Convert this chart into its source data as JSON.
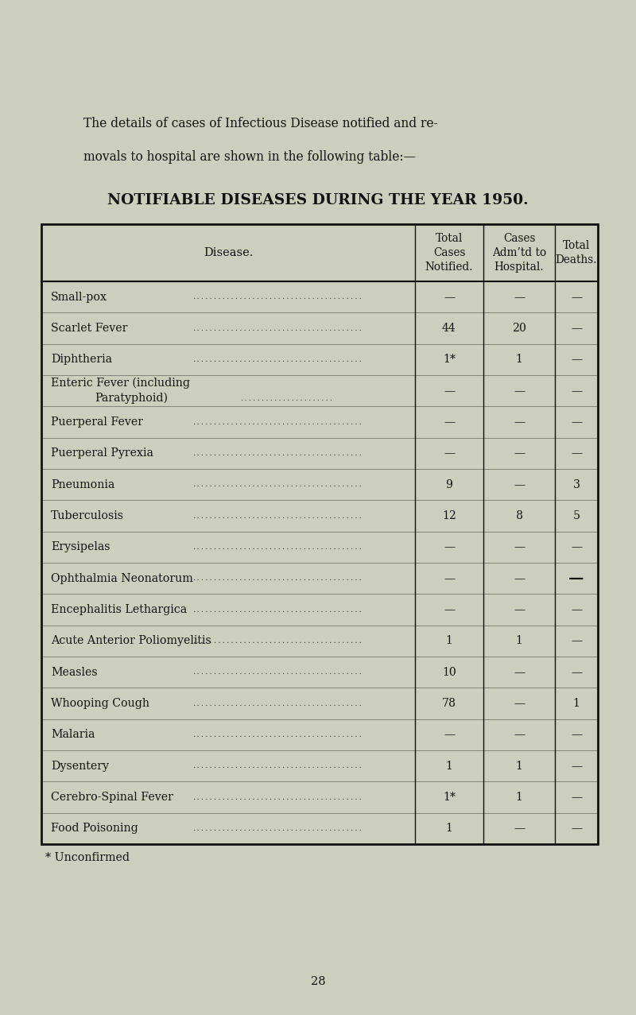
{
  "page_bg": "#cccfbd",
  "intro_text_line1": "The details of cases of Infectious Disease notified and re-",
  "intro_text_line2": "movals to hospital are shown in the following table:—",
  "table_title": "NOTIFIABLE DISEASES DURING THE YEAR 1950.",
  "col_headers": [
    "Disease.",
    "Total\nCases\nNotified.",
    "Cases\nAdm’td to\nHospital.",
    "Total\nDeaths."
  ],
  "rows": [
    [
      "Small-pox",
      "—",
      "—",
      "—"
    ],
    [
      "Scarlet Fever",
      "44",
      "20",
      "—"
    ],
    [
      "Diphtheria",
      "1*",
      "1",
      "—"
    ],
    [
      "Enteric Fever (including\nParatyphoid)",
      "—",
      "—",
      "—"
    ],
    [
      "Puerperal Fever",
      "—",
      "—",
      "—"
    ],
    [
      "Puerperal Pyrexia",
      "—",
      "—",
      "—"
    ],
    [
      "Pneumonia",
      "9",
      "—",
      "3"
    ],
    [
      "Tuberculosis",
      "12",
      "8",
      "5"
    ],
    [
      "Erysipelas",
      "—",
      "—",
      "—"
    ],
    [
      "Ophthalmia Neonatorum",
      "—",
      "—",
      "―"
    ],
    [
      "Encephalitis Lethargica",
      "—",
      "—",
      "—"
    ],
    [
      "Acute Anterior Poliomyelitis",
      "1",
      "1",
      "—"
    ],
    [
      "Measles",
      "10",
      "—",
      "—"
    ],
    [
      "Whooping Cough",
      "78",
      "—",
      "1"
    ],
    [
      "Malaria",
      "—",
      "—",
      "—"
    ],
    [
      "Dysentery",
      "1",
      "1",
      "—"
    ],
    [
      "Cerebro-Spinal Fever",
      "1*",
      "1",
      "—"
    ],
    [
      "Food Poisoning",
      "1",
      "—",
      "—"
    ]
  ],
  "footnote": "* Unconfirmed",
  "page_number": "28",
  "text_color": "#111111",
  "table_border_color": "#111111",
  "font_family": "serif"
}
